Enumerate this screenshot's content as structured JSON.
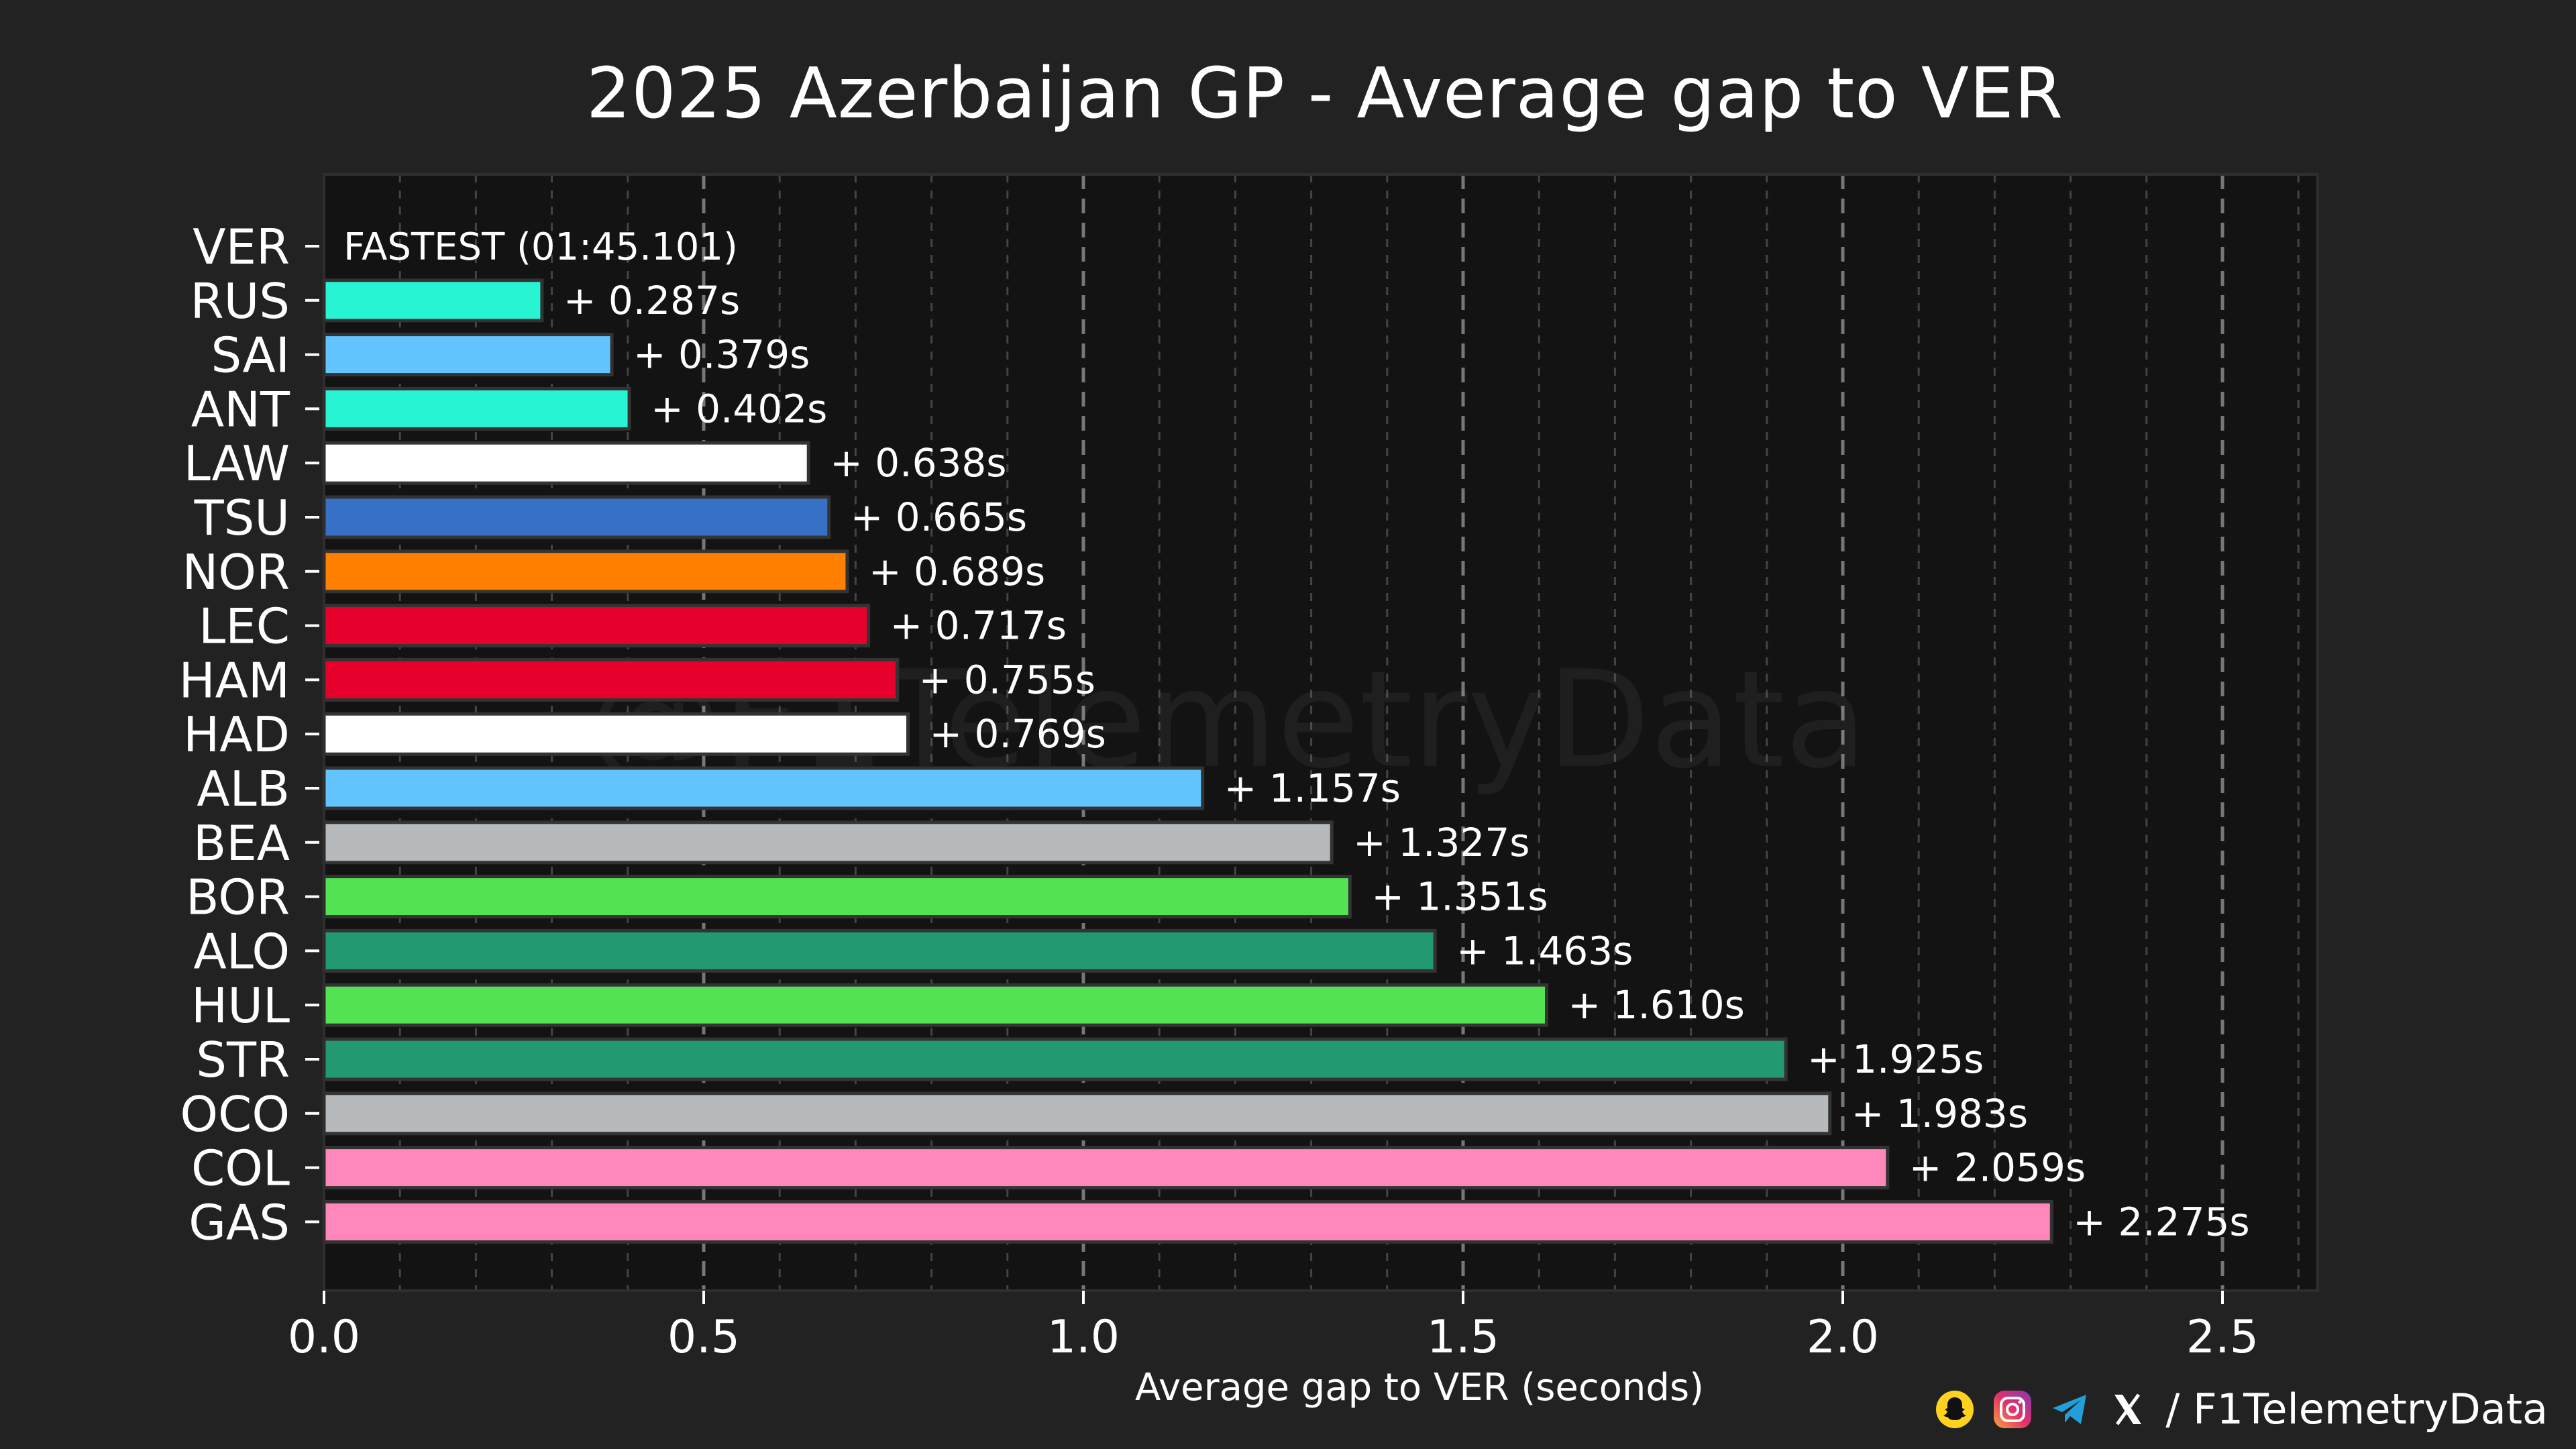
{
  "chart_data": {
    "type": "bar",
    "orientation": "horizontal",
    "title": "2025 Azerbaijan GP - Average gap to VER",
    "xlabel": "Average gap to VER (seconds)",
    "ylabel": "",
    "xlim": [
      0,
      2.625
    ],
    "xticks": [
      0.0,
      0.5,
      1.0,
      1.5,
      2.0,
      2.5
    ],
    "xtick_labels": [
      "0.0",
      "0.5",
      "1.0",
      "1.5",
      "2.0",
      "2.5"
    ],
    "grid": true,
    "watermark": "@F1TelemetryData",
    "fastest_label": "FASTEST (01:45.101)",
    "categories": [
      "VER",
      "RUS",
      "SAI",
      "ANT",
      "LAW",
      "TSU",
      "NOR",
      "LEC",
      "HAM",
      "HAD",
      "ALB",
      "BEA",
      "BOR",
      "ALO",
      "HUL",
      "STR",
      "OCO",
      "COL",
      "GAS"
    ],
    "values": [
      0,
      0.287,
      0.379,
      0.402,
      0.638,
      0.665,
      0.689,
      0.717,
      0.755,
      0.769,
      1.157,
      1.327,
      1.351,
      1.463,
      1.61,
      1.925,
      1.983,
      2.059,
      2.275
    ],
    "value_labels": [
      "",
      "+ 0.287s",
      "+ 0.379s",
      "+ 0.402s",
      "+ 0.638s",
      "+ 0.665s",
      "+ 0.689s",
      "+ 0.717s",
      "+ 0.755s",
      "+ 0.769s",
      "+ 1.157s",
      "+ 1.327s",
      "+ 1.351s",
      "+ 1.463s",
      "+ 1.610s",
      "+ 1.925s",
      "+ 1.983s",
      "+ 2.059s",
      "+ 2.275s"
    ],
    "colors": [
      "#3671C6",
      "#27F4D2",
      "#64C4FF",
      "#27F4D2",
      "#FFFFFF",
      "#3671C6",
      "#FF8000",
      "#E8002D",
      "#E8002D",
      "#FFFFFF",
      "#64C4FF",
      "#B6BABD",
      "#52E252",
      "#229971",
      "#52E252",
      "#229971",
      "#B6BABD",
      "#FF87BC",
      "#FF87BC"
    ]
  },
  "footer": {
    "handle": "/ F1TelemetryData",
    "icons": [
      "snapchat-icon",
      "instagram-icon",
      "telegram-icon",
      "x-icon"
    ]
  },
  "colors": {
    "page_bg": "#222222",
    "plot_bg": "#131313",
    "bar_edge": "#333333",
    "grid_major": "#777777",
    "grid_minor": "#444444"
  }
}
